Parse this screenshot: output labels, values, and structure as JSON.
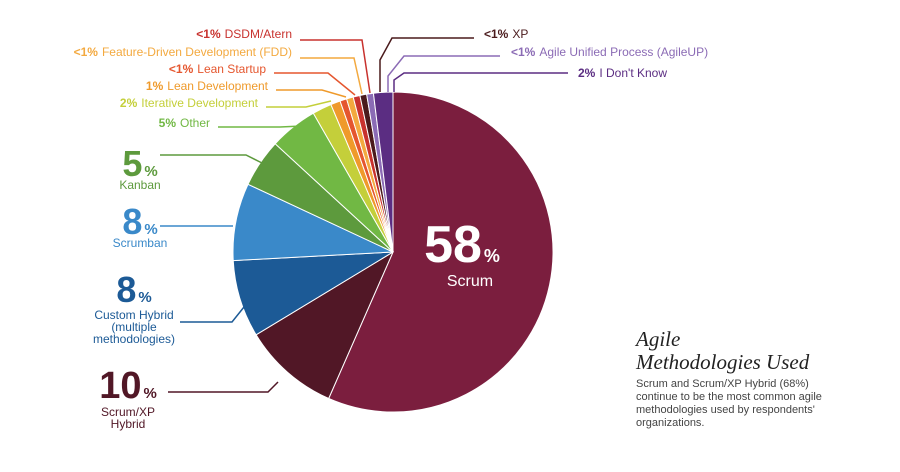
{
  "chart_data": {
    "type": "pie",
    "slices": [
      {
        "pct": "58",
        "name": "Scrum",
        "value": 58,
        "color": "#7b1e3e"
      },
      {
        "pct": "10",
        "name": "Scrum/XP Hybrid",
        "value": 10,
        "color": "#511726"
      },
      {
        "pct": "8",
        "name": "Custom Hybrid (multiple methodologies)",
        "value": 8,
        "color": "#1c5a96"
      },
      {
        "pct": "8",
        "name": "Scrumban",
        "value": 8,
        "color": "#3a89c9"
      },
      {
        "pct": "5",
        "name": "Kanban",
        "value": 5,
        "color": "#5d9a3d"
      },
      {
        "pct": "5%",
        "name": "Other",
        "value": 5,
        "color": "#71b844"
      },
      {
        "pct": "2%",
        "name": "Iterative Development",
        "value": 2,
        "color": "#c4cf3a"
      },
      {
        "pct": "1%",
        "name": "Lean Development",
        "value": 1,
        "color": "#ef9a2b"
      },
      {
        "pct": "<1%",
        "name": "Lean Startup",
        "value": 0.7,
        "color": "#e5562e"
      },
      {
        "pct": "<1%",
        "name": "Feature-Driven Development (FDD)",
        "value": 0.7,
        "color": "#f3a93f"
      },
      {
        "pct": "<1%",
        "name": "DSDM/Atern",
        "value": 0.7,
        "color": "#c8322e"
      },
      {
        "pct": "<1%",
        "name": "XP",
        "value": 0.7,
        "color": "#4a1a1c"
      },
      {
        "pct": "<1%",
        "name": "Agile Unified Process (AgileUP)",
        "value": 0.7,
        "color": "#8b6bb5"
      },
      {
        "pct": "2%",
        "name": "I Don't Know",
        "value": 2,
        "color": "#5b2d82"
      }
    ],
    "title": "Agile Methodologies Used",
    "subtitle": "Scrum and Scrum/XP Hybrid (68%) continue to be the most common agile methodologies used by respondents' organizations."
  },
  "ui": {
    "percent_sign": "%",
    "custom_hybrid_lines": [
      "Custom Hybrid",
      "(multiple",
      "methodologies)"
    ],
    "scrum_xp_lines": [
      "Scrum/XP",
      "Hybrid"
    ],
    "title_lines": [
      "Agile",
      "Methodologies Used"
    ]
  }
}
